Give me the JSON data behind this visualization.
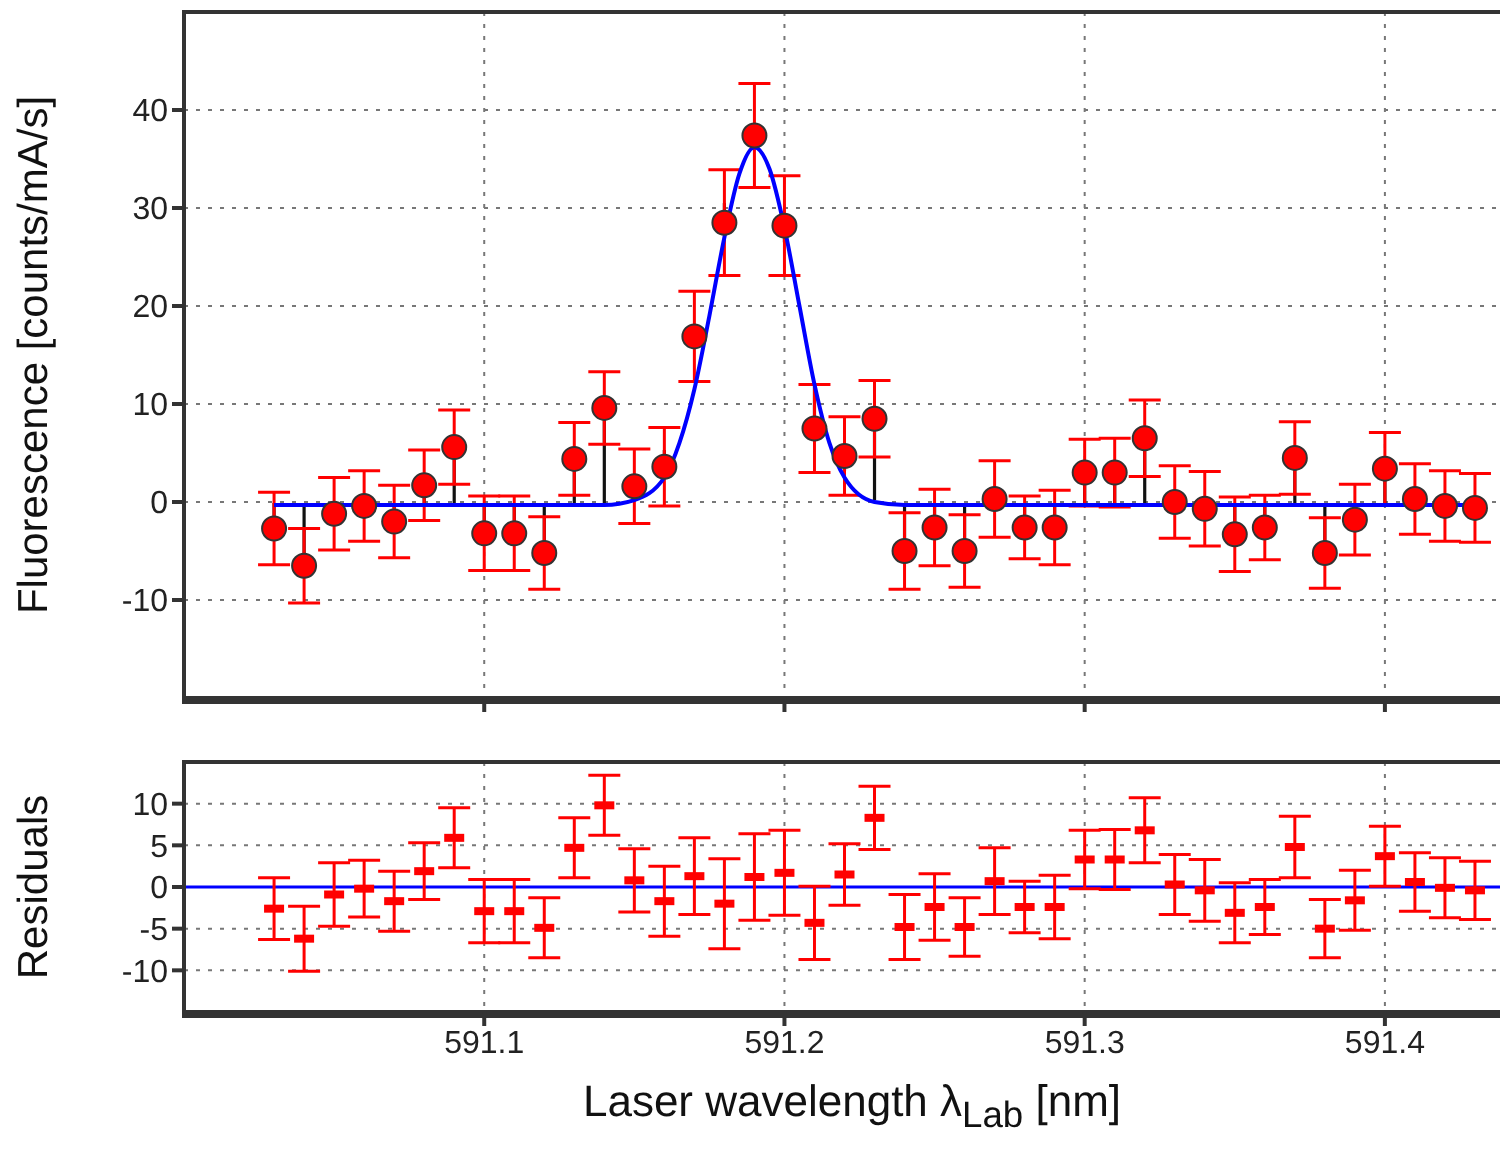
{
  "chart_data": [
    {
      "type": "scatter",
      "ylabel": "Fluorescence [counts/mA/s]",
      "x": [
        591.03,
        591.04,
        591.05,
        591.06,
        591.07,
        591.08,
        591.09,
        591.1,
        591.11,
        591.12,
        591.13,
        591.14,
        591.15,
        591.16,
        591.17,
        591.18,
        591.19,
        591.2,
        591.21,
        591.22,
        591.23,
        591.24,
        591.25,
        591.26,
        591.27,
        591.28,
        591.29,
        591.3,
        591.31,
        591.32,
        591.33,
        591.34,
        591.35,
        591.36,
        591.37,
        591.38,
        591.39,
        591.4,
        591.41,
        591.42,
        591.43
      ],
      "xlim": [
        591.0,
        591.445
      ],
      "xticks": [
        591.1,
        591.2,
        591.3,
        591.4
      ],
      "ylim": [
        -20,
        50
      ],
      "yticks": [
        -10,
        0,
        10,
        20,
        30,
        40
      ],
      "tick_labels": "y",
      "grid": true,
      "series": [
        {
          "marker": "circle",
          "color": "#ff0000",
          "values": [
            -2.7,
            -6.5,
            -1.2,
            -0.4,
            -2.0,
            1.7,
            5.6,
            -3.2,
            -3.2,
            -5.2,
            4.4,
            9.6,
            1.6,
            3.6,
            16.9,
            28.5,
            37.4,
            28.2,
            7.5,
            4.7,
            8.5,
            -5.0,
            -2.6,
            -5.0,
            0.3,
            -2.6,
            -2.6,
            3.0,
            3.0,
            6.5,
            0.0,
            -0.7,
            -3.3,
            -2.6,
            4.5,
            -5.2,
            -1.8,
            3.4,
            0.3,
            -0.4,
            -0.6
          ],
          "errors": [
            3.7,
            3.8,
            3.7,
            3.6,
            3.7,
            3.6,
            3.8,
            3.8,
            3.8,
            3.7,
            3.7,
            3.7,
            3.8,
            4.0,
            4.6,
            5.4,
            5.3,
            5.1,
            4.5,
            4.0,
            3.9,
            3.9,
            3.9,
            3.7,
            3.9,
            3.2,
            3.8,
            3.4,
            3.5,
            3.9,
            3.7,
            3.8,
            3.8,
            3.3,
            3.7,
            3.6,
            3.6,
            3.7,
            3.6,
            3.6,
            3.5
          ]
        },
        {
          "type": "line",
          "color": "#0000ff",
          "x": [
            591.03,
            591.14,
            591.15,
            591.16,
            591.165,
            591.17,
            591.175,
            591.18,
            591.185,
            591.19,
            591.195,
            591.2,
            591.205,
            591.21,
            591.215,
            591.22,
            591.23,
            591.24,
            591.43
          ],
          "values": [
            -0.3,
            -0.3,
            0.2,
            2.5,
            6,
            11.5,
            19,
            27,
            33.5,
            36.2,
            34,
            28,
            20,
            12,
            6,
            2.5,
            0,
            -0.3,
            -0.3
          ]
        }
      ]
    },
    {
      "type": "scatter",
      "ylabel": "Residuals",
      "xlabel": "Laser wavelength λ$_{Lab}$ [nm]",
      "x": [
        591.03,
        591.04,
        591.05,
        591.06,
        591.07,
        591.08,
        591.09,
        591.1,
        591.11,
        591.12,
        591.13,
        591.14,
        591.15,
        591.16,
        591.17,
        591.18,
        591.19,
        591.2,
        591.21,
        591.22,
        591.23,
        591.24,
        591.25,
        591.26,
        591.27,
        591.28,
        591.29,
        591.3,
        591.31,
        591.32,
        591.33,
        591.34,
        591.35,
        591.36,
        591.37,
        591.38,
        591.39,
        591.4,
        591.41,
        591.42,
        591.43
      ],
      "xlim": [
        591.0,
        591.445
      ],
      "xticks": [
        591.1,
        591.2,
        591.3,
        591.4
      ],
      "ylim": [
        -15,
        15
      ],
      "yticks": [
        -10,
        -5,
        0,
        5,
        10
      ],
      "grid": true,
      "series": [
        {
          "color": "#ff0000",
          "values": [
            -2.6,
            -6.2,
            -0.9,
            -0.2,
            -1.7,
            1.9,
            5.9,
            -2.9,
            -2.9,
            -4.9,
            4.7,
            9.8,
            0.8,
            -1.7,
            1.3,
            -2.0,
            1.2,
            1.7,
            -4.3,
            1.5,
            8.3,
            -4.8,
            -2.4,
            -4.8,
            0.7,
            -2.4,
            -2.4,
            3.3,
            3.3,
            6.8,
            0.3,
            -0.4,
            -3.1,
            -2.4,
            4.8,
            -5.0,
            -1.6,
            3.7,
            0.6,
            -0.1,
            -0.4
          ],
          "errors": [
            3.7,
            3.9,
            3.8,
            3.4,
            3.6,
            3.4,
            3.6,
            3.8,
            3.8,
            3.6,
            3.6,
            3.6,
            3.8,
            4.2,
            4.6,
            5.4,
            5.2,
            5.1,
            4.4,
            3.7,
            3.8,
            3.9,
            4.0,
            3.5,
            4.0,
            3.1,
            3.8,
            3.5,
            3.6,
            3.9,
            3.6,
            3.7,
            3.6,
            3.3,
            3.7,
            3.5,
            3.6,
            3.6,
            3.5,
            3.6,
            3.5
          ]
        }
      ],
      "ref_lines": [
        {
          "axis": "y",
          "value": 0,
          "color": "#0000ff"
        }
      ]
    }
  ]
}
